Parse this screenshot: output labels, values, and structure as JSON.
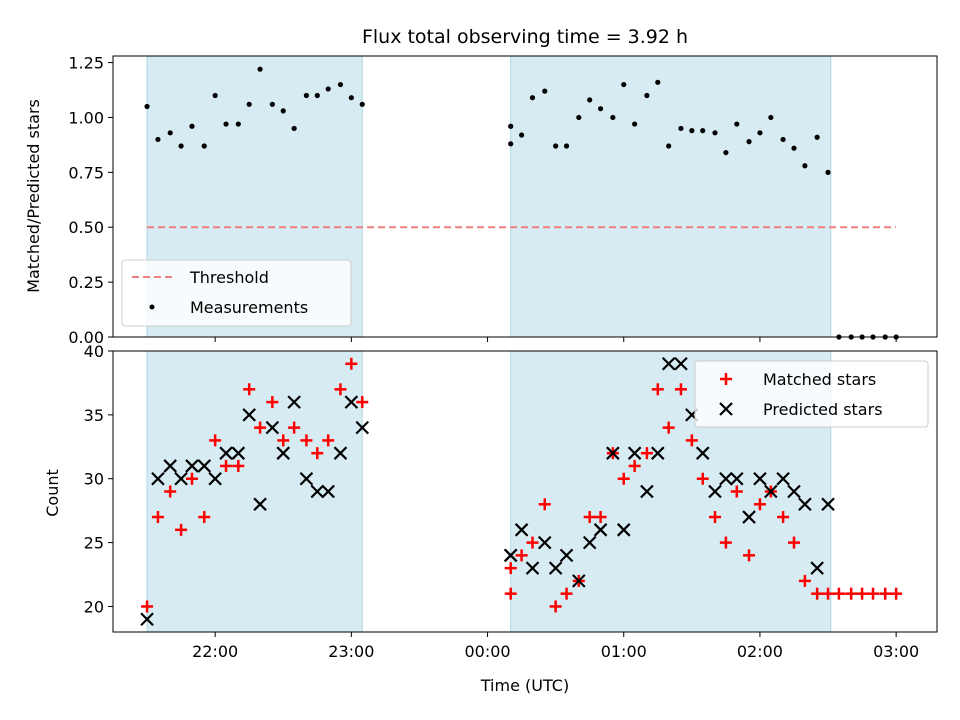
{
  "chart_data": [
    {
      "type": "scatter",
      "title": "Flux total observing time = 3.92 h",
      "ylabel": "Matched/Predicted stars",
      "xlabel": "",
      "x_unit": "hours_relative_to_00:00_UTC",
      "ylim": [
        0,
        1.28
      ],
      "xlim": [
        -2.75,
        3.3
      ],
      "y_ticks": [
        "0.00",
        "0.25",
        "0.50",
        "0.75",
        "1.00",
        "1.25"
      ],
      "y_tick_values": [
        0,
        0.25,
        0.5,
        0.75,
        1.0,
        1.25
      ],
      "x_tick_values": [
        -2,
        -1,
        0,
        1,
        2,
        3
      ],
      "observing_windows": [
        [
          -2.5,
          -0.92
        ],
        [
          0.17,
          2.52
        ]
      ],
      "threshold": {
        "name": "Threshold",
        "value": 0.5,
        "x_range": [
          -2.5,
          3.0
        ],
        "color": "#f08080"
      },
      "series": [
        {
          "name": "Measurements",
          "color": "#000000",
          "points": [
            [
              -2.5,
              1.05
            ],
            [
              -2.42,
              0.9
            ],
            [
              -2.33,
              0.93
            ],
            [
              -2.25,
              0.87
            ],
            [
              -2.17,
              0.96
            ],
            [
              -2.08,
              0.87
            ],
            [
              -2.0,
              1.1
            ],
            [
              -1.92,
              0.97
            ],
            [
              -1.83,
              0.97
            ],
            [
              -1.75,
              1.06
            ],
            [
              -1.67,
              1.22
            ],
            [
              -1.58,
              1.06
            ],
            [
              -1.5,
              1.03
            ],
            [
              -1.42,
              0.95
            ],
            [
              -1.33,
              1.1
            ],
            [
              -1.25,
              1.1
            ],
            [
              -1.17,
              1.13
            ],
            [
              -1.08,
              1.15
            ],
            [
              -1.0,
              1.09
            ],
            [
              -0.92,
              1.06
            ],
            [
              0.17,
              0.96
            ],
            [
              0.17,
              0.88
            ],
            [
              0.25,
              0.92
            ],
            [
              0.33,
              1.09
            ],
            [
              0.42,
              1.12
            ],
            [
              0.5,
              0.87
            ],
            [
              0.58,
              0.87
            ],
            [
              0.67,
              1.0
            ],
            [
              0.75,
              1.08
            ],
            [
              0.83,
              1.04
            ],
            [
              0.92,
              1.0
            ],
            [
              1.0,
              1.15
            ],
            [
              1.08,
              0.97
            ],
            [
              1.17,
              1.1
            ],
            [
              1.25,
              1.16
            ],
            [
              1.33,
              0.87
            ],
            [
              1.42,
              0.95
            ],
            [
              1.5,
              0.94
            ],
            [
              1.58,
              0.94
            ],
            [
              1.67,
              0.93
            ],
            [
              1.75,
              0.84
            ],
            [
              1.83,
              0.97
            ],
            [
              1.92,
              0.89
            ],
            [
              2.0,
              0.93
            ],
            [
              2.08,
              1.0
            ],
            [
              2.17,
              0.9
            ],
            [
              2.25,
              0.86
            ],
            [
              2.33,
              0.78
            ],
            [
              2.42,
              0.91
            ],
            [
              2.5,
              0.75
            ],
            [
              2.58,
              0.0
            ],
            [
              2.67,
              0.0
            ],
            [
              2.75,
              0.0
            ],
            [
              2.83,
              0.0
            ],
            [
              2.92,
              0.0
            ],
            [
              3.0,
              0.0
            ]
          ]
        }
      ],
      "legend": {
        "position": "lower-left",
        "entries": [
          "Threshold",
          "Measurements"
        ]
      }
    },
    {
      "type": "scatter",
      "title": "",
      "ylabel": "Count",
      "xlabel": "Time (UTC)",
      "x_unit": "hours_relative_to_00:00_UTC",
      "ylim": [
        18,
        40
      ],
      "xlim": [
        -2.75,
        3.3
      ],
      "y_ticks": [
        "20",
        "25",
        "30",
        "35",
        "40"
      ],
      "y_tick_values": [
        20,
        25,
        30,
        35,
        40
      ],
      "x_ticks": [
        "22:00",
        "23:00",
        "00:00",
        "01:00",
        "02:00",
        "03:00"
      ],
      "x_tick_values": [
        -2,
        -1,
        0,
        1,
        2,
        3
      ],
      "observing_windows": [
        [
          -2.5,
          -0.92
        ],
        [
          0.17,
          2.52
        ]
      ],
      "series": [
        {
          "name": "Matched stars",
          "color": "#ff0000",
          "marker": "plus",
          "points": [
            [
              -2.5,
              20
            ],
            [
              -2.42,
              27
            ],
            [
              -2.33,
              29
            ],
            [
              -2.25,
              26
            ],
            [
              -2.17,
              30
            ],
            [
              -2.08,
              27
            ],
            [
              -2.0,
              33
            ],
            [
              -1.92,
              31
            ],
            [
              -1.83,
              31
            ],
            [
              -1.75,
              37
            ],
            [
              -1.67,
              34
            ],
            [
              -1.58,
              36
            ],
            [
              -1.5,
              33
            ],
            [
              -1.42,
              34
            ],
            [
              -1.33,
              33
            ],
            [
              -1.25,
              32
            ],
            [
              -1.17,
              33
            ],
            [
              -1.08,
              37
            ],
            [
              -1.0,
              39
            ],
            [
              -0.92,
              36
            ],
            [
              0.17,
              23
            ],
            [
              0.17,
              21
            ],
            [
              0.25,
              24
            ],
            [
              0.33,
              25
            ],
            [
              0.42,
              28
            ],
            [
              0.5,
              20
            ],
            [
              0.58,
              21
            ],
            [
              0.67,
              22
            ],
            [
              0.75,
              27
            ],
            [
              0.83,
              27
            ],
            [
              0.92,
              32
            ],
            [
              1.0,
              30
            ],
            [
              1.08,
              31
            ],
            [
              1.17,
              32
            ],
            [
              1.25,
              37
            ],
            [
              1.33,
              34
            ],
            [
              1.42,
              37
            ],
            [
              1.5,
              33
            ],
            [
              1.58,
              30
            ],
            [
              1.67,
              27
            ],
            [
              1.75,
              25
            ],
            [
              1.83,
              29
            ],
            [
              1.92,
              24
            ],
            [
              2.0,
              28
            ],
            [
              2.08,
              29
            ],
            [
              2.17,
              27
            ],
            [
              2.25,
              25
            ],
            [
              2.33,
              22
            ],
            [
              2.42,
              21
            ],
            [
              2.5,
              21
            ],
            [
              2.58,
              21
            ],
            [
              2.67,
              21
            ],
            [
              2.75,
              21
            ],
            [
              2.83,
              21
            ],
            [
              2.92,
              21
            ],
            [
              3.0,
              21
            ]
          ]
        },
        {
          "name": "Predicted stars",
          "color": "#000000",
          "marker": "x",
          "points": [
            [
              -2.5,
              19
            ],
            [
              -2.42,
              30
            ],
            [
              -2.33,
              31
            ],
            [
              -2.25,
              30
            ],
            [
              -2.17,
              31
            ],
            [
              -2.08,
              31
            ],
            [
              -2.0,
              30
            ],
            [
              -1.92,
              32
            ],
            [
              -1.83,
              32
            ],
            [
              -1.75,
              35
            ],
            [
              -1.67,
              28
            ],
            [
              -1.58,
              34
            ],
            [
              -1.5,
              32
            ],
            [
              -1.42,
              36
            ],
            [
              -1.33,
              30
            ],
            [
              -1.25,
              29
            ],
            [
              -1.17,
              29
            ],
            [
              -1.08,
              32
            ],
            [
              -1.0,
              36
            ],
            [
              -0.92,
              34
            ],
            [
              0.17,
              24
            ],
            [
              0.17,
              24
            ],
            [
              0.25,
              26
            ],
            [
              0.33,
              23
            ],
            [
              0.42,
              25
            ],
            [
              0.5,
              23
            ],
            [
              0.58,
              24
            ],
            [
              0.67,
              22
            ],
            [
              0.75,
              25
            ],
            [
              0.83,
              26
            ],
            [
              0.92,
              32
            ],
            [
              1.0,
              26
            ],
            [
              1.08,
              32
            ],
            [
              1.17,
              29
            ],
            [
              1.25,
              32
            ],
            [
              1.33,
              39
            ],
            [
              1.42,
              39
            ],
            [
              1.5,
              35
            ],
            [
              1.58,
              32
            ],
            [
              1.67,
              29
            ],
            [
              1.75,
              30
            ],
            [
              1.83,
              30
            ],
            [
              1.92,
              27
            ],
            [
              2.0,
              30
            ],
            [
              2.08,
              29
            ],
            [
              2.17,
              30
            ],
            [
              2.25,
              29
            ],
            [
              2.33,
              28
            ],
            [
              2.42,
              23
            ],
            [
              2.5,
              28
            ]
          ]
        }
      ],
      "legend": {
        "position": "top-right",
        "entries": [
          "Matched stars",
          "Predicted stars"
        ]
      }
    }
  ]
}
